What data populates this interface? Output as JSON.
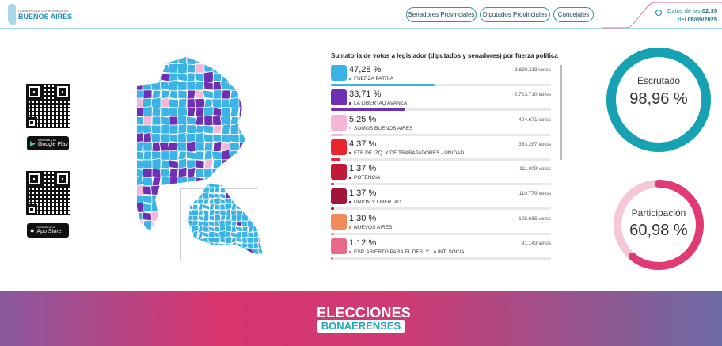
{
  "header": {
    "logo_small": "GOBIERNO DE LA PROVINCIA DE",
    "logo_big": "BUENOS AIRES",
    "nav": [
      "Senadores Provinciales",
      "Diputados Provinciales",
      "Concejales"
    ],
    "date_prefix": "Datos de las",
    "time": "02:35",
    "date_prefix2": "del",
    "date": "08/09/2025"
  },
  "apps": {
    "google_small": "DISPONIBLE EN",
    "google": "Google Play",
    "apple_small": "Consíguelo en el",
    "apple": "App Store"
  },
  "results": {
    "title": "Sumatoria de votos a legislador (diputados y senadores) por fuerza política",
    "parties": [
      {
        "pct": "47,28 %",
        "name": "FUERZA PATRIA",
        "votes": "3.820.119 votos",
        "value": 47.28,
        "color": "#3bb4e5"
      },
      {
        "pct": "33,71 %",
        "name": "LA LIBERTAD AVANZA",
        "votes": "2.723.710 votos",
        "value": 33.71,
        "color": "#6f2fb5"
      },
      {
        "pct": "5,25 %",
        "name": "SOMOS BUENOS AIRES",
        "votes": "424.671 votos",
        "value": 5.25,
        "color": "#f4b6d6"
      },
      {
        "pct": "4,37 %",
        "name": "FTE DE IZQ. Y DE TRABAJADORES - UNIDAD",
        "votes": "353.287 votos",
        "value": 4.37,
        "color": "#e8262f"
      },
      {
        "pct": "1,37 %",
        "name": "POTENCIA",
        "votes": "111.009 votos",
        "value": 1.37,
        "color": "#c2183a"
      },
      {
        "pct": "1,37 %",
        "name": "UNION Y LIBERTAD",
        "votes": "110.779 votos",
        "value": 1.37,
        "color": "#a0163a"
      },
      {
        "pct": "1,30 %",
        "name": "NUEVOS AIRES",
        "votes": "105.685 votos",
        "value": 1.3,
        "color": "#f08a5d"
      },
      {
        "pct": "1,12 %",
        "name": "ESP. ABIERTO PARA EL DES. Y LA INT. SOCIAL",
        "votes": "91.143 votos",
        "value": 1.12,
        "color": "#e86a8a"
      }
    ]
  },
  "gauges": {
    "scrutiny": {
      "label": "Escrutado",
      "value_text": "98,96 %",
      "value": 98.96,
      "color": "#17a2b3",
      "track": "#17a2b3"
    },
    "turnout": {
      "label": "Participación",
      "value_text": "60,98 %",
      "value": 60.98,
      "color": "#e23b73",
      "track": "#f6c7d6"
    }
  },
  "footer": {
    "line1": "ELECCIONES",
    "line2": "BONAERENSES"
  }
}
